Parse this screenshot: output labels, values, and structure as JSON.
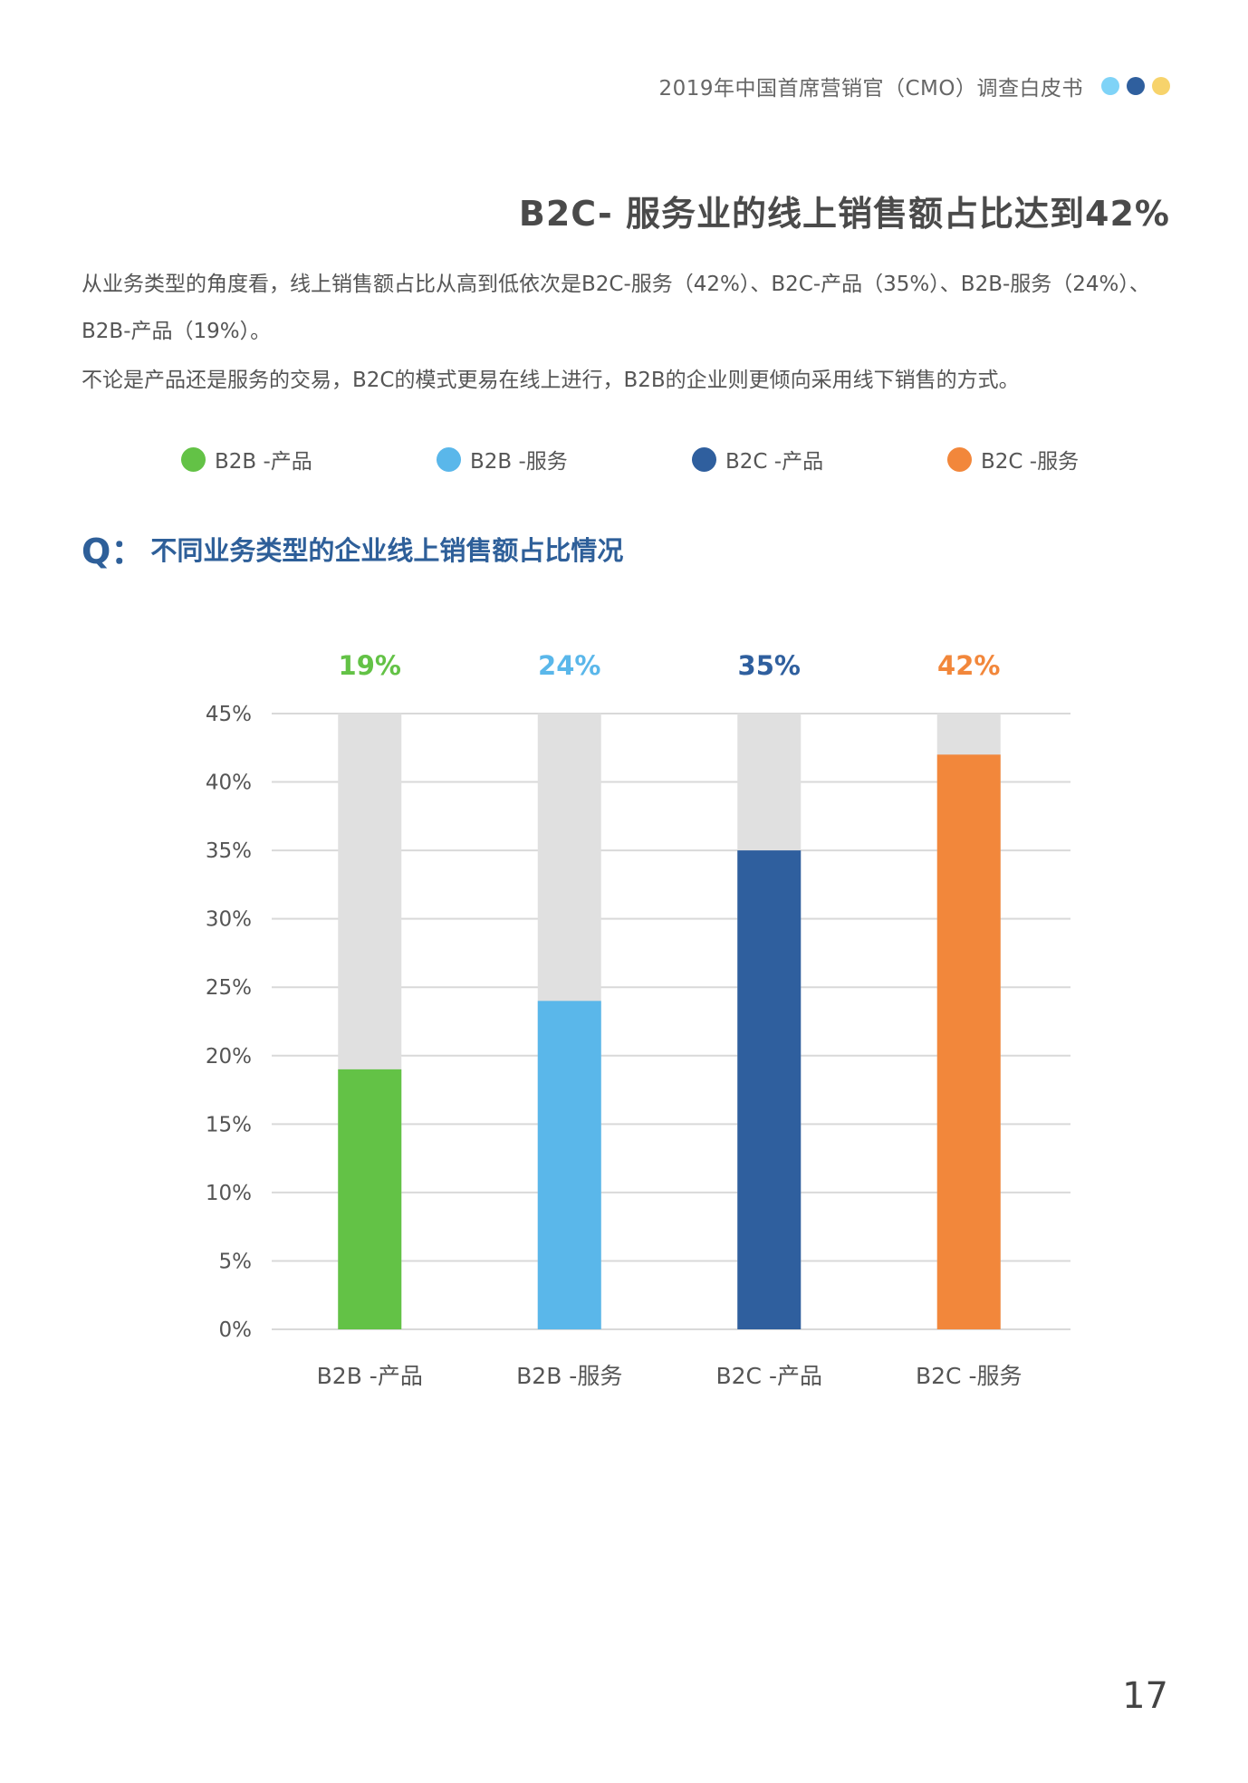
{
  "header": {
    "title": "2019年中国首席营销官（CMO）调查白皮书",
    "dots": [
      "#7fd3f7",
      "#2f5f9e",
      "#f7d36b"
    ]
  },
  "main_title": "B2C- 服务业的线上销售额占比达到42%",
  "paragraphs": [
    "从业务类型的角度看，线上销售额占比从高到低依次是B2C-服务（42%）、B2C-产品（35%）、B2B-服务（24%）、B2B-产品（19%）。",
    "不论是产品还是服务的交易，B2C的模式更易在线上进行，B2B的企业则更倾向采用线下销售的方式。"
  ],
  "legend": [
    {
      "label": "B2B -产品",
      "color": "#63c246"
    },
    {
      "label": "B2B -服务",
      "color": "#5ab7ea"
    },
    {
      "label": "B2C -产品",
      "color": "#2f5f9e"
    },
    {
      "label": "B2C -服务",
      "color": "#f2873b"
    }
  ],
  "question": {
    "mark": "Q：",
    "text": "不同业务类型的企业线上销售额占比情况"
  },
  "chart_data": {
    "type": "bar",
    "title": "不同业务类型的企业线上销售额占比情况",
    "categories": [
      "B2B -产品",
      "B2B -服务",
      "B2C -产品",
      "B2C -服务"
    ],
    "values": [
      19,
      24,
      35,
      42
    ],
    "value_labels": [
      "19%",
      "24%",
      "35%",
      "42%"
    ],
    "colors": [
      "#63c246",
      "#5ab7ea",
      "#2f5f9e",
      "#f2873b"
    ],
    "background_bar_color": "#e0e0e0",
    "ylim": [
      0,
      45
    ],
    "yticks": [
      0,
      5,
      10,
      15,
      20,
      25,
      30,
      35,
      40,
      45
    ],
    "ytick_labels": [
      "0%",
      "5%",
      "10%",
      "15%",
      "20%",
      "25%",
      "30%",
      "35%",
      "40%",
      "45%"
    ],
    "xlabel": "",
    "ylabel": "",
    "grid": true,
    "legend_position": "top"
  },
  "page_number": "17"
}
